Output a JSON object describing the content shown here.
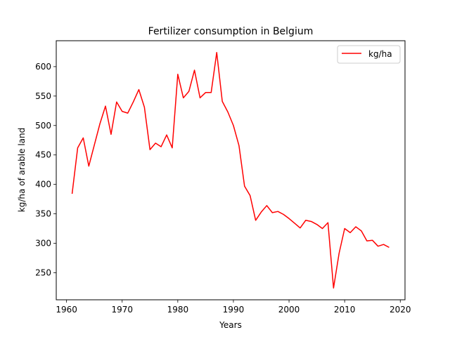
{
  "chart_data": {
    "type": "line",
    "title": "Fertilizer consumption in Belgium",
    "xlabel": "Years",
    "ylabel": "kg/ha of arable land",
    "xlim": [
      1958.15,
      2020.85
    ],
    "ylim": [
      204,
      644
    ],
    "xticks": [
      1960,
      1970,
      1980,
      1990,
      2000,
      2010,
      2020
    ],
    "yticks": [
      250,
      300,
      350,
      400,
      450,
      500,
      550,
      600
    ],
    "grid": false,
    "legend_position": "upper-right",
    "series": [
      {
        "name": "kg/ha",
        "color": "#ff0000",
        "x": [
          1961,
          1962,
          1963,
          1964,
          1965,
          1966,
          1967,
          1968,
          1969,
          1970,
          1971,
          1972,
          1973,
          1974,
          1975,
          1976,
          1977,
          1978,
          1979,
          1980,
          1981,
          1982,
          1983,
          1984,
          1985,
          1986,
          1987,
          1988,
          1989,
          1990,
          1991,
          1992,
          1993,
          1994,
          1995,
          1996,
          1997,
          1998,
          1999,
          2000,
          2001,
          2002,
          2003,
          2004,
          2005,
          2006,
          2007,
          2008,
          2009,
          2010,
          2011,
          2012,
          2013,
          2014,
          2015,
          2016,
          2017,
          2018
        ],
        "y": [
          384,
          462,
          479,
          431,
          467,
          503,
          533,
          485,
          540,
          524,
          521,
          540,
          561,
          531,
          459,
          470,
          464,
          484,
          462,
          587,
          547,
          558,
          594,
          547,
          556,
          556,
          624,
          541,
          523,
          500,
          466,
          397,
          381,
          339,
          353,
          364,
          352,
          354,
          349,
          342,
          334,
          326,
          339,
          337,
          332,
          325,
          335,
          224,
          283,
          325,
          318,
          328,
          321,
          304,
          305,
          295,
          298,
          293
        ]
      }
    ]
  }
}
